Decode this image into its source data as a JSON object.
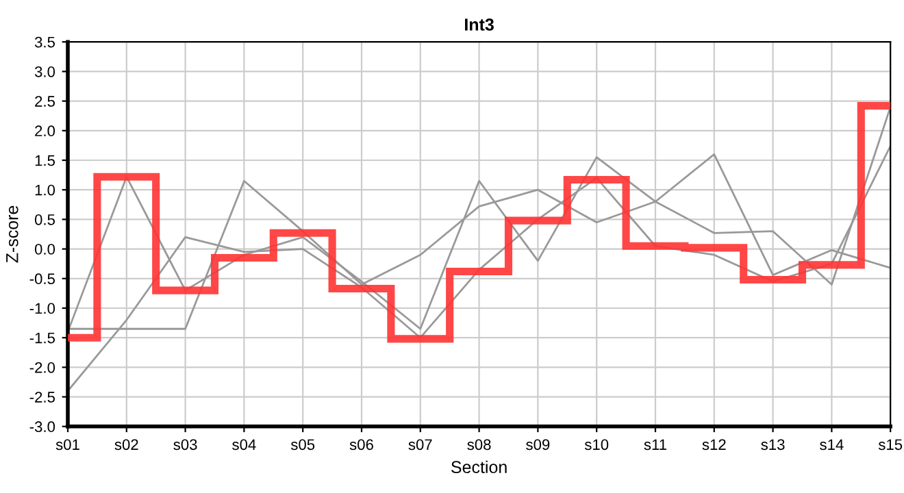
{
  "chart_data": {
    "type": "line",
    "title": "Int3",
    "xlabel": "Section",
    "ylabel": "Z-score",
    "categories": [
      "s01",
      "s02",
      "s03",
      "s04",
      "s05",
      "s06",
      "s07",
      "s08",
      "s09",
      "s10",
      "s11",
      "s12",
      "s13",
      "s14",
      "s15"
    ],
    "ylim": [
      -3.0,
      3.5
    ],
    "yticks": [
      {
        "value": -3,
        "label": "-3.0"
      },
      -2.5,
      {
        "value": -2,
        "label": "-2.0"
      },
      -1.5,
      {
        "value": -1,
        "label": "-1.0"
      },
      -0.5,
      {
        "value": 0,
        "label": "0.0"
      },
      0.5,
      {
        "value": 1,
        "label": "1.0"
      },
      1.5,
      {
        "value": 2,
        "label": "2.0"
      },
      2.5,
      {
        "value": 3,
        "label": "3.0"
      },
      3.5
    ],
    "grid": true,
    "marker": "none",
    "line_style": "solid",
    "series": [
      {
        "color": "#999999",
        "values": [
          -1.4,
          1.22,
          -0.7,
          -0.1,
          0.2,
          -0.55,
          -1.35,
          1.15,
          -0.2,
          1.55,
          0.8,
          0.27,
          0.3,
          -0.6,
          2.4
        ]
      },
      {
        "color": "#999999",
        "values": [
          -1.35,
          -1.35,
          -1.35,
          1.15,
          0.3,
          -0.6,
          -0.1,
          0.72,
          1.0,
          0.45,
          0.8,
          1.6,
          -0.44,
          -0.02,
          -0.32
        ]
      },
      {
        "color": "#999999",
        "values": [
          -2.4,
          -1.2,
          0.2,
          -0.05,
          0.0,
          -0.65,
          -1.5,
          -0.35,
          0.5,
          1.2,
          0.05,
          -0.1,
          -0.55,
          -0.25,
          1.74
        ]
      },
      {
        "type": "step",
        "color": "#ff3333",
        "values": [
          -1.5,
          1.22,
          -0.7,
          -0.15,
          0.27,
          -0.67,
          -1.52,
          -0.38,
          0.48,
          1.17,
          0.05,
          0.02,
          -0.52,
          -0.27,
          2.42
        ]
      }
    ]
  }
}
